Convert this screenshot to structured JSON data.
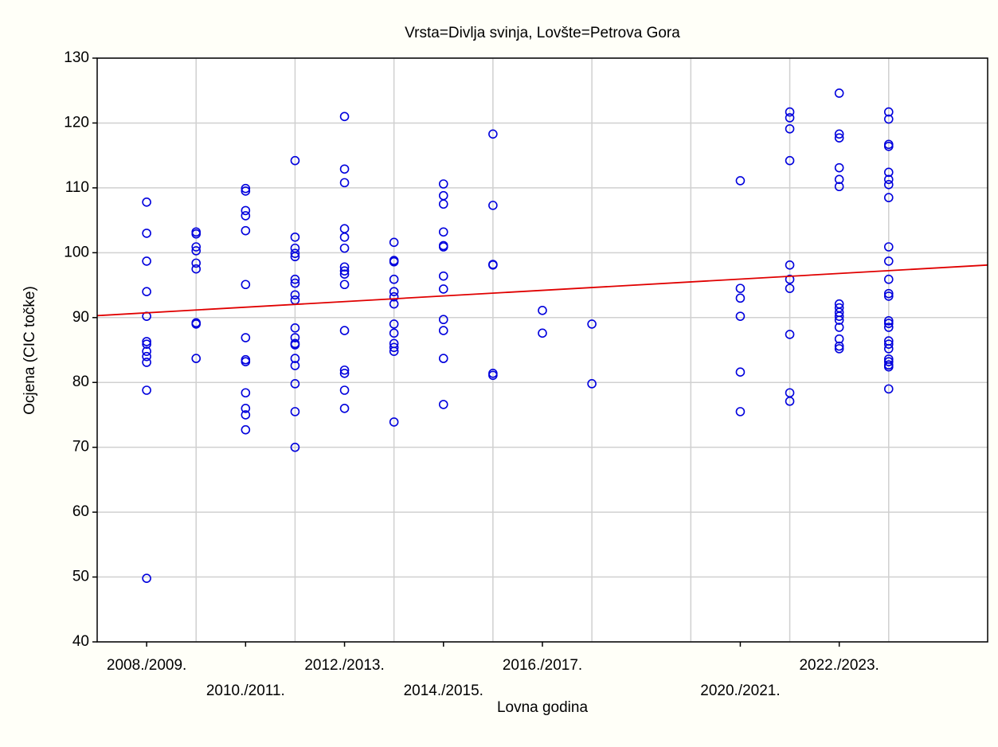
{
  "chart_data": {
    "type": "scatter",
    "title": "Vrsta=Divlja svinja, Lovšte=Petrova Gora",
    "xlabel": "Lovna godina",
    "ylabel": "Ocjena (CIC točke)",
    "xlim": [
      0,
      18
    ],
    "ylim": [
      40,
      130
    ],
    "yticks": [
      40,
      50,
      60,
      70,
      80,
      90,
      100,
      110,
      120,
      130
    ],
    "xticks": [
      {
        "value": 1,
        "label": "2008./2009."
      },
      {
        "value": 3,
        "label": "2010./2011."
      },
      {
        "value": 5,
        "label": "2012./2013."
      },
      {
        "value": 7,
        "label": "2014./2015."
      },
      {
        "value": 9,
        "label": "2016./2017."
      },
      {
        "value": 13,
        "label": "2020./2021."
      },
      {
        "value": 15,
        "label": "2022./2023."
      }
    ],
    "xgrid": [
      2,
      4,
      6,
      8,
      10,
      12,
      14,
      16
    ],
    "grid": true,
    "trendline": {
      "color": "#e00000",
      "x": [
        0,
        18
      ],
      "y": [
        90.3,
        98.1
      ]
    },
    "series": [
      {
        "color": "#0000dd",
        "x": [
          1,
          1,
          1,
          1,
          1,
          1,
          1,
          1,
          1,
          1,
          1,
          1,
          2,
          2,
          2,
          2,
          2,
          2,
          2,
          2,
          2,
          3,
          3,
          3,
          3,
          3,
          3,
          3,
          3,
          3,
          3,
          3,
          3,
          3,
          4,
          4,
          4,
          4,
          4,
          4,
          4,
          4,
          4,
          4,
          4,
          4,
          4,
          4,
          4,
          4,
          4,
          4,
          5,
          5,
          5,
          5,
          5,
          5,
          5,
          5,
          5,
          5,
          5,
          5,
          5,
          5,
          5,
          6,
          6,
          6,
          6,
          6,
          6,
          6,
          6,
          6,
          6,
          6,
          6,
          6,
          7,
          7,
          7,
          7,
          7,
          7,
          7,
          7,
          7,
          7,
          7,
          7,
          8,
          8,
          8,
          8,
          8,
          8,
          9,
          9,
          10,
          10,
          13,
          13,
          13,
          13,
          13,
          13,
          14,
          14,
          14,
          14,
          14,
          14,
          14,
          14,
          14,
          14,
          15,
          15,
          15,
          15,
          15,
          15,
          15,
          15,
          15,
          15,
          15,
          15,
          15,
          15,
          15,
          16,
          16,
          16,
          16,
          16,
          16,
          16,
          16,
          16,
          16,
          16,
          16,
          16,
          16,
          16,
          16,
          16,
          16,
          16,
          16,
          16,
          16,
          16,
          16
        ],
        "values": [
          107.8,
          103,
          98.7,
          94,
          90.2,
          86.3,
          85.9,
          84.8,
          84,
          83.1,
          78.8,
          49.8,
          103.2,
          102.9,
          100.9,
          100.3,
          98.4,
          97.5,
          89.2,
          89.0,
          83.7,
          109.9,
          109.5,
          106.5,
          105.7,
          103.4,
          95.1,
          86.9,
          83.5,
          83.2,
          78.4,
          76,
          75,
          72.7,
          114.2,
          102.4,
          100.7,
          99.9,
          99.4,
          95.9,
          95.3,
          93.5,
          92.7,
          88.4,
          86.9,
          86,
          85.8,
          83.7,
          82.6,
          79.8,
          75.5,
          70,
          121,
          112.9,
          110.8,
          103.7,
          102.4,
          100.7,
          97.8,
          97.2,
          96.7,
          95.1,
          88,
          81.9,
          81.4,
          78.8,
          76,
          101.6,
          98.8,
          98.6,
          95.9,
          94,
          93.2,
          92.1,
          89,
          87.6,
          86,
          85.4,
          84.8,
          73.9,
          110.6,
          108.8,
          107.5,
          103.2,
          101.1,
          100.9,
          96.4,
          94.4,
          89.7,
          88,
          83.7,
          76.6,
          118.3,
          107.3,
          98.2,
          98.1,
          81.4,
          81.1,
          91.1,
          87.6,
          89,
          79.8,
          111.1,
          94.5,
          93,
          90.2,
          81.6,
          75.5,
          121.7,
          120.8,
          119.1,
          114.2,
          98.1,
          95.9,
          94.5,
          87.4,
          78.4,
          77.1,
          124.6,
          118.3,
          117.7,
          113.1,
          111.3,
          110.2,
          92.1,
          91.5,
          90.8,
          90.2,
          89.6,
          88.5,
          86.7,
          85.6,
          85.2,
          121.7,
          120.6,
          116.7,
          116.4,
          112.4,
          111.3,
          110.5,
          108.5,
          100.9,
          98.7,
          95.9,
          93.7,
          93.3,
          89.5,
          89.1,
          88.5,
          86.4,
          85.9,
          85.2,
          83.6,
          83.2,
          82.7,
          82.4,
          79
        ]
      }
    ]
  }
}
